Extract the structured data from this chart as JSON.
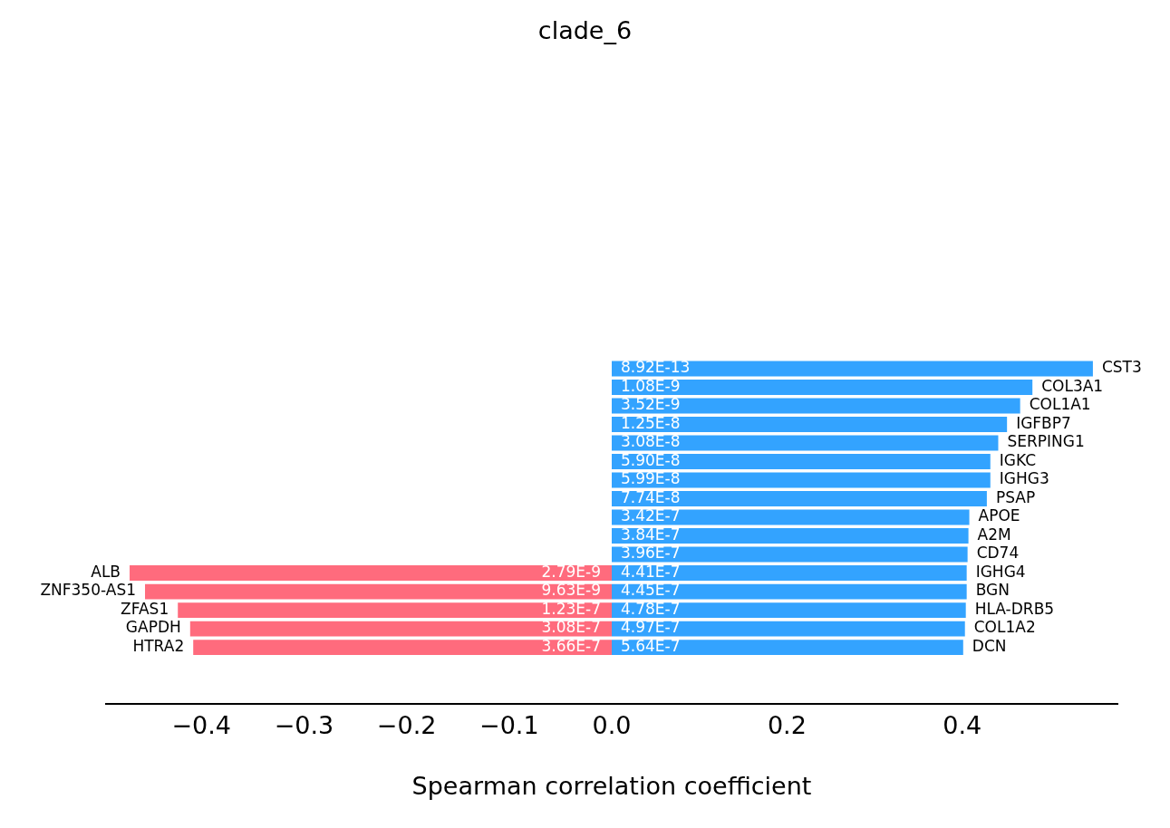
{
  "chart_data": [
    {
      "type": "bar",
      "orientation": "horizontal",
      "title": "clade_6",
      "xlabel": "Spearman correlation coefficient",
      "categories": [
        null,
        null,
        null,
        null,
        null,
        null,
        null,
        null,
        null,
        null,
        null,
        "ALB",
        "ZNF350-AS1",
        "ZFAS1",
        "GAPDH",
        "HTRA2"
      ],
      "values": [
        null,
        null,
        null,
        null,
        null,
        null,
        null,
        null,
        null,
        null,
        null,
        -0.47,
        -0.455,
        -0.423,
        -0.411,
        -0.408
      ],
      "annotations": [
        "2.79E-9",
        "9.63E-9",
        "1.23E-7",
        "3.08E-7",
        "3.66E-7"
      ],
      "color": "#ff6b7d",
      "xlim": [
        -0.493,
        0
      ],
      "xticks": [
        {
          "value": -0.4,
          "label": "−0.4"
        },
        {
          "value": -0.3,
          "label": "−0.3"
        },
        {
          "value": -0.2,
          "label": "−0.2"
        },
        {
          "value": -0.1,
          "label": "−0.1"
        }
      ],
      "grid": false,
      "tick_labels": "x"
    },
    {
      "type": "bar",
      "orientation": "horizontal",
      "categories": [
        "CST3",
        "COL3A1",
        "COL1A1",
        "IGFBP7",
        "SERPING1",
        "IGKC",
        "IGHG3",
        "PSAP",
        "APOE",
        "A2M",
        "CD74",
        "IGHG4",
        "BGN",
        "HLA-DRB5",
        "COL1A2",
        "DCN"
      ],
      "values": [
        0.549,
        0.48,
        0.466,
        0.451,
        0.441,
        0.432,
        0.432,
        0.428,
        0.408,
        0.407,
        0.406,
        0.405,
        0.405,
        0.404,
        0.403,
        0.401
      ],
      "annotations": [
        "8.92E-13",
        "1.08E-9",
        "3.52E-9",
        "1.25E-8",
        "3.08E-8",
        "5.90E-8",
        "5.99E-8",
        "7.74E-8",
        "3.42E-7",
        "3.84E-7",
        "3.96E-7",
        "4.41E-7",
        "4.45E-7",
        "4.78E-7",
        "4.97E-7",
        "5.64E-7"
      ],
      "color": "#33a3ff",
      "xlim": [
        0,
        0.577
      ],
      "xticks": [
        {
          "value": 0,
          "label": "0.0"
        },
        {
          "value": 0.2,
          "label": "0.2"
        },
        {
          "value": 0.4,
          "label": "0.4"
        }
      ],
      "grid": false,
      "tick_labels": "x"
    }
  ]
}
